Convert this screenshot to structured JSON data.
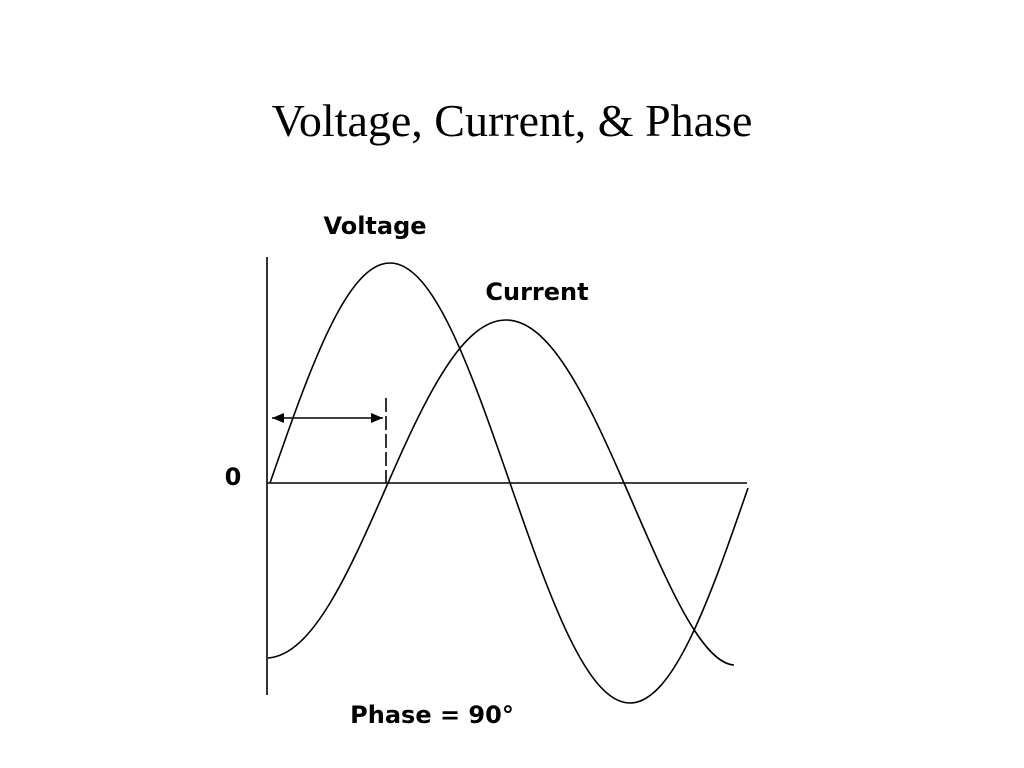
{
  "title": "Voltage, Current, & Phase",
  "diagram": {
    "voltage_label": "Voltage",
    "current_label": "Current",
    "zero_label": "0",
    "phase_label": "Phase = 90°"
  }
}
